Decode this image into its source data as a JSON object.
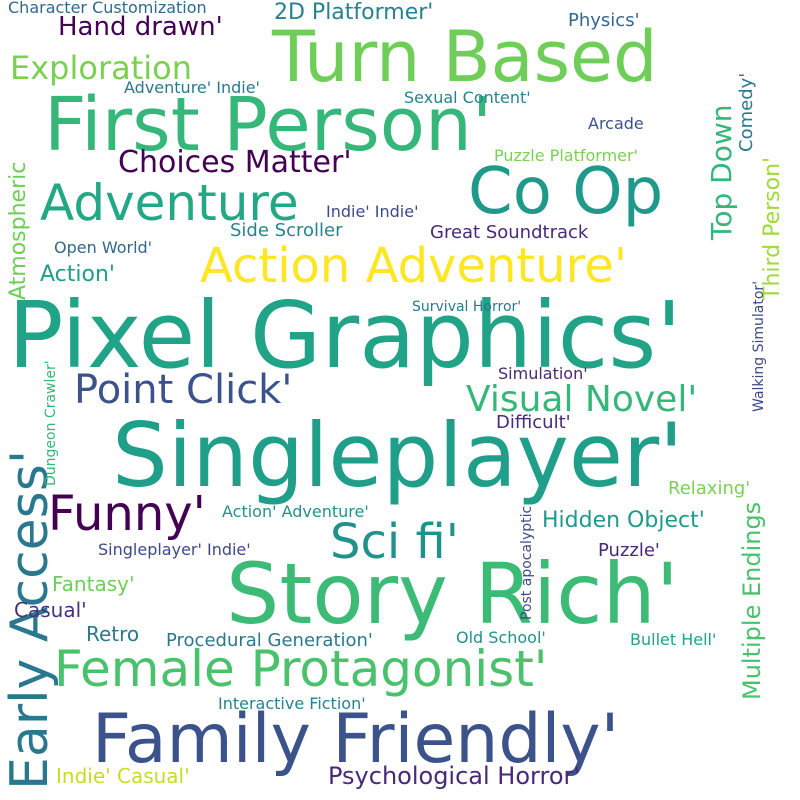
{
  "words": [
    {
      "text": "Singleplayer'",
      "color": "#1f9e89"
    },
    {
      "text": "Pixel Graphics'",
      "color": "#20a386"
    },
    {
      "text": "Story Rich'",
      "color": "#3bbb75"
    },
    {
      "text": "Family Friendly'",
      "color": "#3b528b"
    },
    {
      "text": "First Person'",
      "color": "#35b779"
    },
    {
      "text": "Turn Based",
      "color": "#6ece58"
    },
    {
      "text": "Co Op",
      "color": "#1f9a8a"
    },
    {
      "text": "Action Adventure'",
      "color": "#fde725"
    },
    {
      "text": "Adventure",
      "color": "#22a884"
    },
    {
      "text": "Female Protagonist'",
      "color": "#4ac16d"
    },
    {
      "text": "Early Access'",
      "color": "#2a788e"
    },
    {
      "text": "Funny'",
      "color": "#440154"
    },
    {
      "text": "Sci fi'",
      "color": "#21918c"
    },
    {
      "text": "Point Click'",
      "color": "#3b528b"
    },
    {
      "text": "Visual Novel'",
      "color": "#35b779"
    },
    {
      "text": "Choices Matter'",
      "color": "#440154"
    },
    {
      "text": "Exploration",
      "color": "#7ad151"
    },
    {
      "text": "Psychological Horror'",
      "color": "#482878"
    },
    {
      "text": "Hand drawn'",
      "color": "#440154"
    },
    {
      "text": "Multiple Endings",
      "color": "#4ac16d"
    },
    {
      "text": "Third Person'",
      "color": "#a0da39"
    },
    {
      "text": "Top Down",
      "color": "#35b779"
    },
    {
      "text": "Atmospheric",
      "color": "#6ece58"
    },
    {
      "text": "Procedural Generation'",
      "color": "#2a788e"
    },
    {
      "text": "Hidden Object'",
      "color": "#1f9a8a"
    },
    {
      "text": "Interactive Fiction'",
      "color": "#26828e"
    },
    {
      "text": "Indie' Casual'",
      "color": "#c2df23"
    },
    {
      "text": "Great Soundtrack",
      "color": "#482878"
    },
    {
      "text": "Side Scroller",
      "color": "#26828e"
    },
    {
      "text": "Puzzle Platformer'",
      "color": "#7ad151"
    },
    {
      "text": "Character Customization",
      "color": "#31688e"
    },
    {
      "text": "2D Platformer'",
      "color": "#26828e"
    },
    {
      "text": "Sexual Content'",
      "color": "#26828e"
    },
    {
      "text": "Open World'",
      "color": "#31688e"
    },
    {
      "text": "Action'",
      "color": "#1f9e89"
    },
    {
      "text": "Adventure' Indie'",
      "color": "#2a788e"
    },
    {
      "text": "Survival Horror'",
      "color": "#2a788e"
    },
    {
      "text": "Simulation'",
      "color": "#482878"
    },
    {
      "text": "Difficult'",
      "color": "#482878"
    },
    {
      "text": "Relaxing'",
      "color": "#7ad151"
    },
    {
      "text": "Action' Adventure'",
      "color": "#21918c"
    },
    {
      "text": "Singleplayer' Indie'",
      "color": "#3e4989"
    },
    {
      "text": "Puzzle'",
      "color": "#482878"
    },
    {
      "text": "Fantasy'",
      "color": "#6ece58"
    },
    {
      "text": "Casual'",
      "color": "#46327e"
    },
    {
      "text": "Retro",
      "color": "#2a788e"
    },
    {
      "text": "Old School'",
      "color": "#21918c"
    },
    {
      "text": "Bullet Hell'",
      "color": "#20a386"
    },
    {
      "text": "Physics'",
      "color": "#31688e"
    },
    {
      "text": "Comedy'",
      "color": "#2a788e"
    },
    {
      "text": "Arcade",
      "color": "#3b528b"
    },
    {
      "text": "Walking Simulator'",
      "color": "#3e4989"
    },
    {
      "text": "Dungeon Crawler'",
      "color": "#35b779"
    },
    {
      "text": "Post apocalyptic",
      "color": "#3e4989"
    },
    {
      "text": "Indie' Indie'",
      "color": "#3e4989"
    }
  ]
}
